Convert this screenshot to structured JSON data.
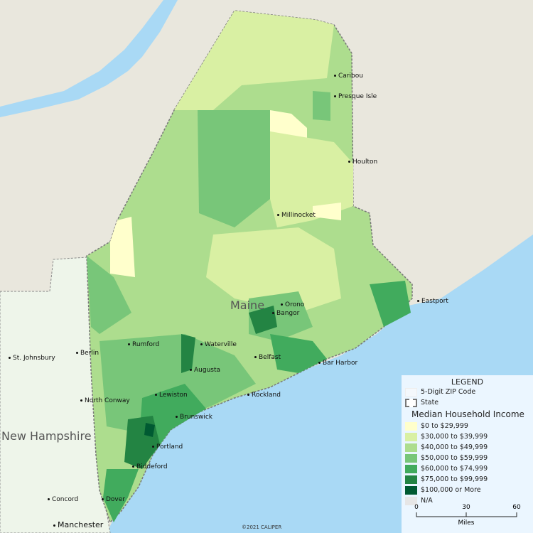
{
  "map": {
    "state_label": "Maine",
    "neighbor_label": "New Hampshire",
    "copyright": "©2021 CALIPER",
    "cities": [
      "Caribou",
      "Presque Isle",
      "Houlton",
      "Millinocket",
      "Orono",
      "Bangor",
      "Eastport",
      "Rumford",
      "Waterville",
      "Belfast",
      "Bar Harbor",
      "Augusta",
      "Lewiston",
      "Rockland",
      "North Conway",
      "Brunswick",
      "Portland",
      "Biddeford",
      "Dover",
      "Concord",
      "Manchester",
      "St. Johnsbury",
      "Berlin"
    ],
    "colors": {
      "water": "#a9d9f5",
      "land": "#e9e7dd",
      "nh": "#eef5ea"
    }
  },
  "legend": {
    "title": "LEGEND",
    "layers": [
      {
        "label": "5-Digit ZIP Code"
      },
      {
        "label": "State"
      }
    ],
    "theme_title": "Median Household Income",
    "classes": [
      {
        "label": "$0 to $29,999",
        "color": "#ffffcc"
      },
      {
        "label": "$30,000 to $39,999",
        "color": "#d9f0a3"
      },
      {
        "label": "$40,000 to $49,999",
        "color": "#addd8e"
      },
      {
        "label": "$50,000 to $59,999",
        "color": "#78c679"
      },
      {
        "label": "$60,000 to $74,999",
        "color": "#41ab5d"
      },
      {
        "label": "$75,000 to $99,999",
        "color": "#238443"
      },
      {
        "label": "$100,000 or More",
        "color": "#005a32"
      },
      {
        "label": "N/A",
        "color": "#e6e6e6"
      }
    ],
    "scale": {
      "ticks": [
        "0",
        "30",
        "60"
      ],
      "unit": "Miles"
    }
  }
}
